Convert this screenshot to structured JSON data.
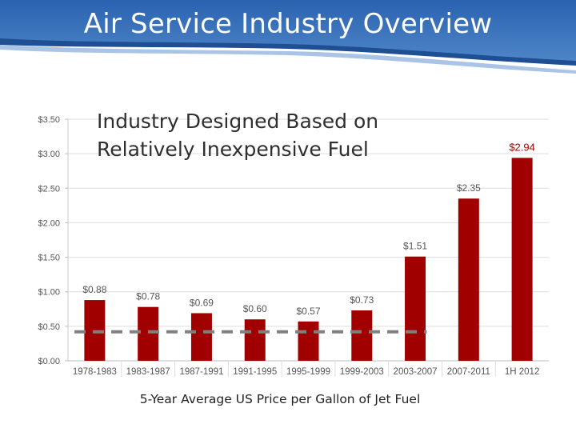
{
  "slide": {
    "title": "Air Service Industry Overview"
  },
  "colors": {
    "bar": "#a00000",
    "bar_highlight_label": "#a00000",
    "header_blue": "#2e67b3",
    "dashed_line": "#808080"
  },
  "chart_data": {
    "type": "bar",
    "title": "Industry Designed Based on Relatively Inexpensive Fuel",
    "title_lines": [
      "Industry Designed Based on",
      "Relatively Inexpensive Fuel"
    ],
    "caption": "5-Year Average US Price per Gallon of  Jet Fuel",
    "xlabel": "",
    "ylabel": "",
    "ylim": [
      0,
      3.5
    ],
    "yticks": [
      {
        "value": 0.0,
        "label": "$0.00"
      },
      {
        "value": 0.5,
        "label": "$0.50"
      },
      {
        "value": 1.0,
        "label": "$1.00"
      },
      {
        "value": 1.5,
        "label": "$1.50"
      },
      {
        "value": 2.0,
        "label": "$2.00"
      },
      {
        "value": 2.5,
        "label": "$2.50"
      },
      {
        "value": 3.0,
        "label": "$3.00"
      },
      {
        "value": 3.5,
        "label": "$3.50"
      }
    ],
    "categories": [
      "1978-1983",
      "1983-1987",
      "1987-1991",
      "1991-1995",
      "1995-1999",
      "1999-2003",
      "2003-2007",
      "2007-2011",
      "1H 2012"
    ],
    "values": [
      0.88,
      0.78,
      0.69,
      0.6,
      0.57,
      0.73,
      1.51,
      2.35,
      2.94
    ],
    "value_labels": [
      "$0.88",
      "$0.78",
      "$0.69",
      "$0.60",
      "$0.57",
      "$0.73",
      "$1.51",
      "$2.35",
      "$2.94"
    ],
    "highlight_index": 8,
    "reference_line": {
      "value": 0.42,
      "style": "dashed",
      "from_category": 0,
      "to_category": 6
    }
  }
}
